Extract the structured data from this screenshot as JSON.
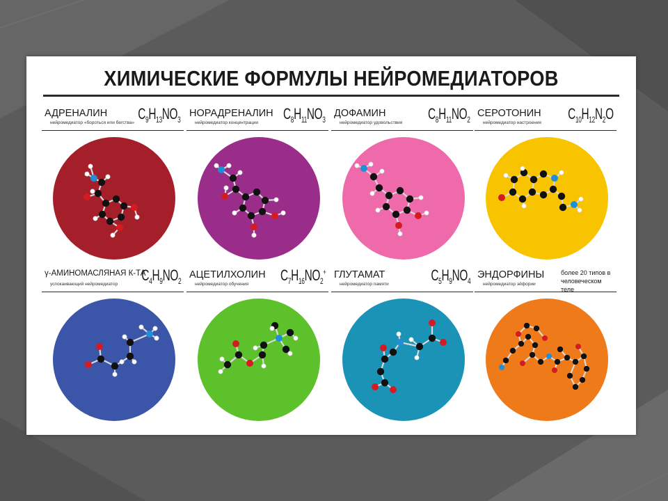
{
  "title": "ХИМИЧЕСКИЕ ФОРМУЛЫ НЕЙРОМЕДИАТОРОВ",
  "molecules": [
    {
      "name": "АДРЕНАЛИН",
      "desc": "нейромедиатор «бороться или бегства»",
      "f": [
        "C",
        "9",
        "H",
        "13",
        "NO",
        "3"
      ],
      "color": "#a51f2b"
    },
    {
      "name": "НОРАДРЕНАЛИН",
      "desc": "нейромедиатор концентрации",
      "f": [
        "C",
        "8",
        "H",
        "11",
        "NO",
        "3"
      ],
      "color": "#9b2d8a"
    },
    {
      "name": "ДОФАМИН",
      "desc": "нейромедиатор удовольствия",
      "f": [
        "C",
        "8",
        "H",
        "11",
        "NO",
        "2"
      ],
      "color": "#ee6aab"
    },
    {
      "name": "СЕРОТОНИН",
      "desc": "нейромедиатор настроения",
      "f": [
        "C",
        "10",
        "H",
        "12",
        "N",
        "2",
        "O",
        ""
      ],
      "color": "#f8c400"
    },
    {
      "name": "γ-АМИНОМАСЛЯНАЯ К-ТА",
      "desc": "успокаивающий нейромедиатор",
      "f": [
        "C",
        "4",
        "H",
        "9",
        "NO",
        "2"
      ],
      "color": "#3b55a8"
    },
    {
      "name": "АЦЕТИЛХОЛИН",
      "desc": "нейромедиатор обучения",
      "f": [
        "C",
        "7",
        "H",
        "16",
        "NO",
        "2"
      ],
      "charge": "+",
      "color": "#5cc12a"
    },
    {
      "name": "ГЛУТАМАТ",
      "desc": "нейромедиатор памяти",
      "f": [
        "C",
        "5",
        "H",
        "9",
        "NO",
        "4"
      ],
      "color": "#1a93b6"
    },
    {
      "name": "ЭНДОРФИНЫ",
      "desc": "нейромедиатор эйфории",
      "note": "более 20 типов в человеческом теле",
      "color": "#ef7a1a"
    }
  ],
  "atom_colors": {
    "carbon": "#111111",
    "oxygen": "#d61a22",
    "nitrogen": "#1f8fd6",
    "hydrogen": "#ffffff"
  }
}
